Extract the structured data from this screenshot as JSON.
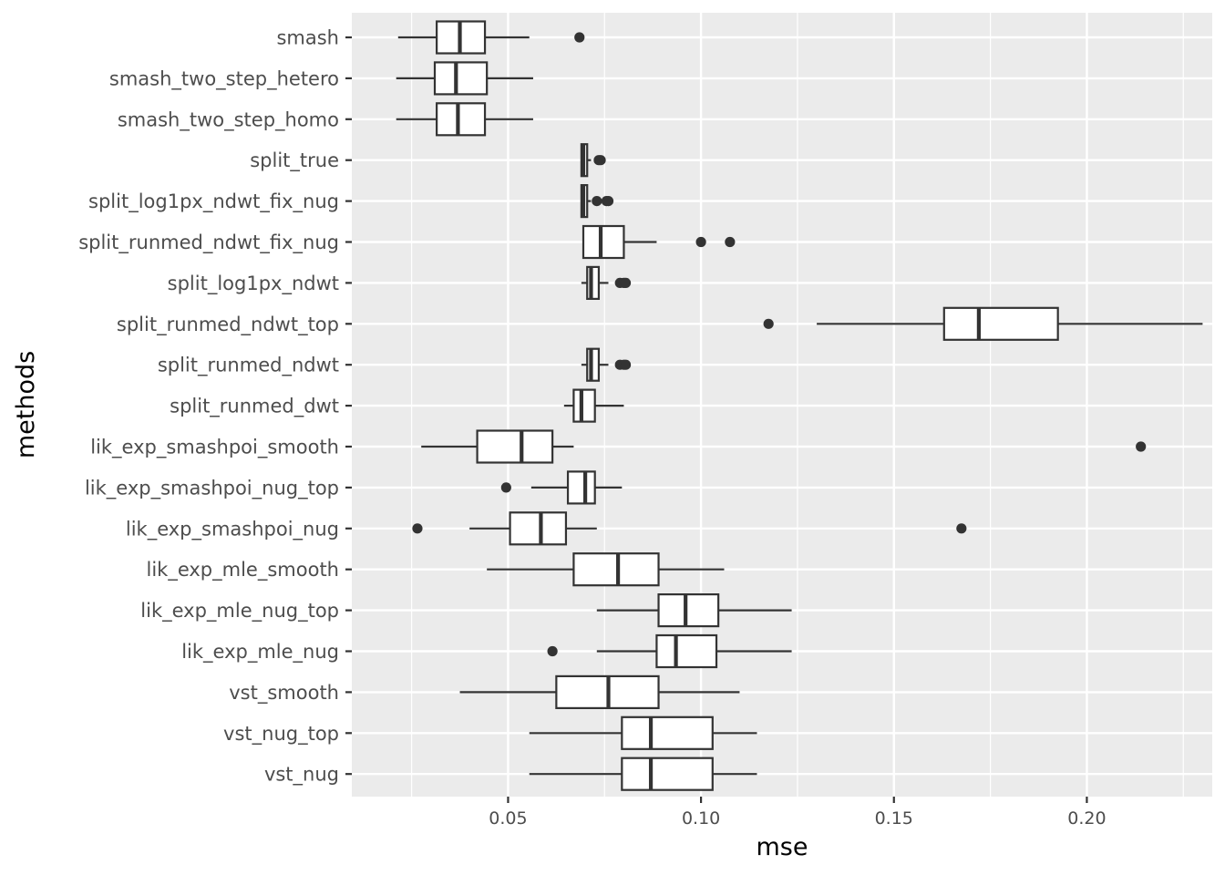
{
  "chart_data": {
    "type": "boxplot",
    "orientation": "horizontal",
    "xlabel": "mse",
    "ylabel": "methods",
    "xlim": [
      0.0095,
      0.2325
    ],
    "x_ticks": [
      0.05,
      0.1,
      0.15,
      0.2
    ],
    "x_tick_labels": [
      "0.05",
      "0.10",
      "0.15",
      "0.20"
    ],
    "grid": true,
    "categories": [
      "smash",
      "smash_two_step_hetero",
      "smash_two_step_homo",
      "split_true",
      "split_log1px_ndwt_fix_nug",
      "split_runmed_ndwt_fix_nug",
      "split_log1px_ndwt",
      "split_runmed_ndwt_top",
      "split_runmed_ndwt",
      "split_runmed_dwt",
      "lik_exp_smashpoi_smooth",
      "lik_exp_smashpoi_nug_top",
      "lik_exp_smashpoi_nug",
      "lik_exp_mle_smooth",
      "lik_exp_mle_nug_top",
      "lik_exp_mle_nug",
      "vst_smooth",
      "vst_nug_top",
      "vst_nug"
    ],
    "boxes": [
      {
        "min": 0.0215,
        "q1": 0.0315,
        "median": 0.0375,
        "q3": 0.044,
        "max": 0.0555,
        "outliers": [
          0.0685
        ]
      },
      {
        "min": 0.021,
        "q1": 0.031,
        "median": 0.0365,
        "q3": 0.0445,
        "max": 0.0565,
        "outliers": []
      },
      {
        "min": 0.021,
        "q1": 0.0315,
        "median": 0.037,
        "q3": 0.044,
        "max": 0.0565,
        "outliers": []
      },
      {
        "min": 0.069,
        "q1": 0.069,
        "median": 0.0695,
        "q3": 0.0705,
        "max": 0.0715,
        "outliers": [
          0.0735,
          0.074
        ]
      },
      {
        "min": 0.069,
        "q1": 0.069,
        "median": 0.0695,
        "q3": 0.0705,
        "max": 0.0715,
        "outliers": [
          0.073,
          0.0755,
          0.076
        ]
      },
      {
        "min": 0.0695,
        "q1": 0.0695,
        "median": 0.074,
        "q3": 0.08,
        "max": 0.0885,
        "outliers": [
          0.1,
          0.1075
        ]
      },
      {
        "min": 0.069,
        "q1": 0.0705,
        "median": 0.0715,
        "q3": 0.0735,
        "max": 0.076,
        "outliers": [
          0.079,
          0.08,
          0.0805
        ]
      },
      {
        "min": 0.13,
        "q1": 0.163,
        "median": 0.172,
        "q3": 0.1925,
        "max": 0.23,
        "outliers": [
          0.1175
        ]
      },
      {
        "min": 0.069,
        "q1": 0.0705,
        "median": 0.0715,
        "q3": 0.0735,
        "max": 0.076,
        "outliers": [
          0.079,
          0.08,
          0.0805
        ]
      },
      {
        "min": 0.0645,
        "q1": 0.067,
        "median": 0.069,
        "q3": 0.0725,
        "max": 0.08,
        "outliers": []
      },
      {
        "min": 0.0275,
        "q1": 0.042,
        "median": 0.0535,
        "q3": 0.0615,
        "max": 0.067,
        "outliers": [
          0.214
        ]
      },
      {
        "min": 0.056,
        "q1": 0.0655,
        "median": 0.07,
        "q3": 0.0725,
        "max": 0.0795,
        "outliers": [
          0.0495
        ]
      },
      {
        "min": 0.04,
        "q1": 0.0505,
        "median": 0.0585,
        "q3": 0.065,
        "max": 0.073,
        "outliers": [
          0.0265,
          0.1675
        ]
      },
      {
        "min": 0.0445,
        "q1": 0.067,
        "median": 0.0785,
        "q3": 0.089,
        "max": 0.106,
        "outliers": []
      },
      {
        "min": 0.073,
        "q1": 0.089,
        "median": 0.096,
        "q3": 0.1045,
        "max": 0.1235,
        "outliers": []
      },
      {
        "min": 0.073,
        "q1": 0.0885,
        "median": 0.0935,
        "q3": 0.104,
        "max": 0.1235,
        "outliers": [
          0.0615
        ]
      },
      {
        "min": 0.0375,
        "q1": 0.0625,
        "median": 0.076,
        "q3": 0.089,
        "max": 0.11,
        "outliers": []
      },
      {
        "min": 0.0555,
        "q1": 0.0795,
        "median": 0.087,
        "q3": 0.103,
        "max": 0.1145,
        "outliers": []
      },
      {
        "min": 0.0555,
        "q1": 0.0795,
        "median": 0.087,
        "q3": 0.103,
        "max": 0.1145,
        "outliers": []
      }
    ],
    "colors": {
      "panel_bg": "#ebebeb",
      "grid_major": "#ffffff",
      "box_fill": "#ffffff",
      "box_stroke": "#333333",
      "outlier": "#333333",
      "tick": "#333333"
    }
  }
}
